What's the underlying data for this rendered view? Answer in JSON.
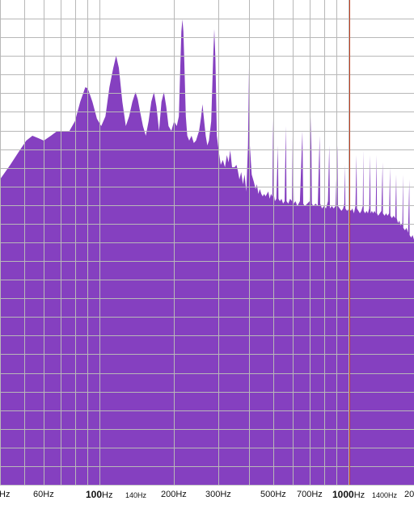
{
  "colors": {
    "spectrum_fill": "#8540c0",
    "grid_line": "#b8b8b8",
    "background": "#ffffff",
    "cursor_line": "#c04020",
    "ruler_text": "#111111"
  },
  "cursor": {
    "frequency_hz": 1010
  },
  "ruler": {
    "labels": [
      {
        "freq": 40,
        "num": "",
        "unit": "Hz",
        "bold": false,
        "small": false
      },
      {
        "freq": 60,
        "num": "60",
        "unit": "Hz",
        "bold": false,
        "small": false
      },
      {
        "freq": 100,
        "num": "100",
        "unit": "Hz",
        "bold": true,
        "small": false
      },
      {
        "freq": 140,
        "num": "140",
        "unit": "Hz",
        "bold": false,
        "small": true
      },
      {
        "freq": 200,
        "num": "200",
        "unit": "Hz",
        "bold": false,
        "small": false
      },
      {
        "freq": 300,
        "num": "300",
        "unit": "Hz",
        "bold": false,
        "small": false
      },
      {
        "freq": 500,
        "num": "500",
        "unit": "Hz",
        "bold": false,
        "small": false
      },
      {
        "freq": 700,
        "num": "700",
        "unit": "Hz",
        "bold": false,
        "small": false
      },
      {
        "freq": 1000,
        "num": "1000",
        "unit": "Hz",
        "bold": true,
        "small": false
      },
      {
        "freq": 1400,
        "num": "1400",
        "unit": "Hz",
        "bold": false,
        "small": true
      },
      {
        "freq": 2000,
        "num": "20",
        "unit": "",
        "bold": false,
        "small": false
      }
    ]
  },
  "grid": {
    "vertical_freqs": [
      40,
      50,
      60,
      70,
      80,
      90,
      100,
      200,
      300,
      400,
      500,
      600,
      700,
      800,
      900,
      1000,
      2000
    ],
    "horizontal_rows": 26
  },
  "chart_data": {
    "type": "area",
    "x_scale": "log",
    "xlim": [
      40,
      2000
    ],
    "ylim": [
      0,
      1
    ],
    "series": [
      {
        "points": [
          [
            40,
            0.63
          ],
          [
            44,
            0.66
          ],
          [
            48,
            0.69
          ],
          [
            51,
            0.71
          ],
          [
            54,
            0.72
          ],
          [
            57,
            0.715
          ],
          [
            60,
            0.71
          ],
          [
            64,
            0.72
          ],
          [
            68,
            0.73
          ],
          [
            72,
            0.73
          ],
          [
            76,
            0.73
          ],
          [
            80,
            0.75
          ],
          [
            84,
            0.79
          ],
          [
            88,
            0.82
          ],
          [
            90,
            0.818
          ],
          [
            94,
            0.79
          ],
          [
            98,
            0.755
          ],
          [
            102,
            0.74
          ],
          [
            106,
            0.76
          ],
          [
            110,
            0.82
          ],
          [
            114,
            0.86
          ],
          [
            117,
            0.885
          ],
          [
            120,
            0.86
          ],
          [
            124,
            0.79
          ],
          [
            128,
            0.74
          ],
          [
            132,
            0.76
          ],
          [
            136,
            0.79
          ],
          [
            140,
            0.81
          ],
          [
            143,
            0.795
          ],
          [
            146,
            0.77
          ],
          [
            150,
            0.74
          ],
          [
            154,
            0.72
          ],
          [
            158,
            0.75
          ],
          [
            162,
            0.79
          ],
          [
            166,
            0.81
          ],
          [
            170,
            0.78
          ],
          [
            174,
            0.73
          ],
          [
            178,
            0.79
          ],
          [
            182,
            0.81
          ],
          [
            186,
            0.78
          ],
          [
            190,
            0.74
          ],
          [
            195,
            0.73
          ],
          [
            200,
            0.75
          ],
          [
            205,
            0.74
          ],
          [
            209,
            0.76
          ],
          [
            212,
            0.87
          ],
          [
            214,
            0.935
          ],
          [
            216,
            0.96
          ],
          [
            218,
            0.935
          ],
          [
            220,
            0.87
          ],
          [
            223,
            0.76
          ],
          [
            226,
            0.72
          ],
          [
            230,
            0.71
          ],
          [
            235,
            0.72
          ],
          [
            240,
            0.705
          ],
          [
            245,
            0.71
          ],
          [
            252,
            0.73
          ],
          [
            257,
            0.76
          ],
          [
            260,
            0.785
          ],
          [
            263,
            0.76
          ],
          [
            268,
            0.72
          ],
          [
            272,
            0.7
          ],
          [
            276,
            0.71
          ],
          [
            282,
            0.75
          ],
          [
            287,
            0.88
          ],
          [
            290,
            0.94
          ],
          [
            293,
            0.88
          ],
          [
            297,
            0.72
          ],
          [
            302,
            0.69
          ],
          [
            308,
            0.66
          ],
          [
            314,
            0.67
          ],
          [
            320,
            0.655
          ],
          [
            326,
            0.68
          ],
          [
            331,
            0.665
          ],
          [
            336,
            0.69
          ],
          [
            342,
            0.655
          ],
          [
            350,
            0.655
          ],
          [
            356,
            0.66
          ],
          [
            360,
            0.65
          ],
          [
            366,
            0.63
          ],
          [
            372,
            0.645
          ],
          [
            378,
            0.62
          ],
          [
            384,
            0.64
          ],
          [
            390,
            0.605
          ],
          [
            396,
            0.7
          ],
          [
            400,
            0.86
          ],
          [
            403,
            0.7
          ],
          [
            410,
            0.64
          ],
          [
            418,
            0.625
          ],
          [
            425,
            0.61
          ],
          [
            430,
            0.62
          ],
          [
            436,
            0.6
          ],
          [
            442,
            0.61
          ],
          [
            448,
            0.6
          ],
          [
            454,
            0.595
          ],
          [
            460,
            0.6
          ],
          [
            466,
            0.595
          ],
          [
            472,
            0.6
          ],
          [
            478,
            0.605
          ],
          [
            484,
            0.59
          ],
          [
            490,
            0.6
          ],
          [
            496,
            0.595
          ],
          [
            500,
            0.755
          ],
          [
            503,
            0.6
          ],
          [
            508,
            0.585
          ],
          [
            515,
            0.59
          ],
          [
            522,
            0.7
          ],
          [
            525,
            0.59
          ],
          [
            532,
            0.585
          ],
          [
            540,
            0.59
          ],
          [
            548,
            0.58
          ],
          [
            556,
            0.585
          ],
          [
            562,
            0.74
          ],
          [
            566,
            0.585
          ],
          [
            575,
            0.58
          ],
          [
            585,
            0.59
          ],
          [
            595,
            0.585
          ],
          [
            600,
            0.75
          ],
          [
            605,
            0.58
          ],
          [
            615,
            0.585
          ],
          [
            625,
            0.575
          ],
          [
            640,
            0.585
          ],
          [
            655,
            0.73
          ],
          [
            660,
            0.58
          ],
          [
            670,
            0.575
          ],
          [
            685,
            0.58
          ],
          [
            700,
            0.585
          ],
          [
            710,
            0.76
          ],
          [
            715,
            0.58
          ],
          [
            725,
            0.575
          ],
          [
            740,
            0.58
          ],
          [
            755,
            0.575
          ],
          [
            768,
            0.72
          ],
          [
            772,
            0.58
          ],
          [
            785,
            0.57
          ],
          [
            800,
            0.575
          ],
          [
            815,
            0.57
          ],
          [
            830,
            0.585
          ],
          [
            840,
            0.7
          ],
          [
            845,
            0.57
          ],
          [
            860,
            0.575
          ],
          [
            875,
            0.57
          ],
          [
            890,
            0.575
          ],
          [
            905,
            0.7
          ],
          [
            910,
            0.575
          ],
          [
            925,
            0.57
          ],
          [
            940,
            0.565
          ],
          [
            955,
            0.57
          ],
          [
            965,
            0.58
          ],
          [
            970,
            0.66
          ],
          [
            975,
            0.57
          ],
          [
            990,
            0.565
          ],
          [
            1010,
            0.57
          ],
          [
            1025,
            0.565
          ],
          [
            1040,
            0.57
          ],
          [
            1055,
            0.56
          ],
          [
            1070,
            0.575
          ],
          [
            1080,
            0.68
          ],
          [
            1085,
            0.57
          ],
          [
            1100,
            0.565
          ],
          [
            1115,
            0.56
          ],
          [
            1130,
            0.565
          ],
          [
            1145,
            0.575
          ],
          [
            1150,
            0.69
          ],
          [
            1155,
            0.565
          ],
          [
            1170,
            0.56
          ],
          [
            1185,
            0.565
          ],
          [
            1200,
            0.56
          ],
          [
            1215,
            0.57
          ],
          [
            1225,
            0.68
          ],
          [
            1230,
            0.56
          ],
          [
            1245,
            0.565
          ],
          [
            1260,
            0.56
          ],
          [
            1275,
            0.565
          ],
          [
            1290,
            0.56
          ],
          [
            1300,
            0.68
          ],
          [
            1305,
            0.56
          ],
          [
            1320,
            0.555
          ],
          [
            1340,
            0.56
          ],
          [
            1360,
            0.565
          ],
          [
            1375,
            0.665
          ],
          [
            1380,
            0.56
          ],
          [
            1400,
            0.555
          ],
          [
            1420,
            0.56
          ],
          [
            1440,
            0.555
          ],
          [
            1460,
            0.56
          ],
          [
            1472,
            0.655
          ],
          [
            1478,
            0.555
          ],
          [
            1500,
            0.55
          ],
          [
            1520,
            0.555
          ],
          [
            1545,
            0.55
          ],
          [
            1560,
            0.64
          ],
          [
            1566,
            0.55
          ],
          [
            1585,
            0.54
          ],
          [
            1605,
            0.545
          ],
          [
            1625,
            0.535
          ],
          [
            1650,
            0.54
          ],
          [
            1660,
            0.64
          ],
          [
            1666,
            0.53
          ],
          [
            1690,
            0.525
          ],
          [
            1715,
            0.53
          ],
          [
            1740,
            0.52
          ],
          [
            1760,
            0.63
          ],
          [
            1766,
            0.515
          ],
          [
            1790,
            0.51
          ],
          [
            1815,
            0.515
          ],
          [
            1840,
            0.505
          ],
          [
            1860,
            0.61
          ],
          [
            1866,
            0.505
          ],
          [
            1890,
            0.5
          ],
          [
            1915,
            0.505
          ],
          [
            1940,
            0.495
          ],
          [
            1965,
            0.5
          ],
          [
            1985,
            0.495
          ],
          [
            2000,
            0.49
          ]
        ]
      }
    ]
  }
}
